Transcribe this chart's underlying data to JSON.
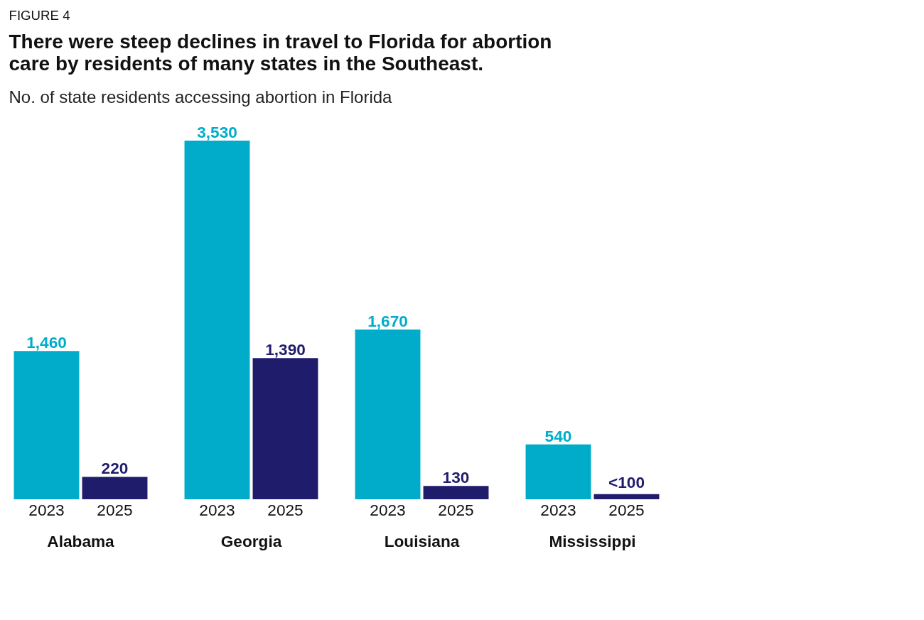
{
  "chart_data": {
    "type": "bar",
    "annotations": [
      "FIGURE 4"
    ],
    "title": "There were steep declines in travel to Florida for abortion care by residents of many states in the Southeast.",
    "subtitle": "No. of state residents accessing abortion in Florida",
    "categories": [
      "Alabama",
      "Georgia",
      "Louisiana",
      "Mississippi"
    ],
    "series": [
      {
        "name": "2023",
        "color": "#00acca",
        "values": [
          1460,
          3530,
          1670,
          540
        ],
        "value_labels": [
          "1,460",
          "3,530",
          "1,670",
          "540"
        ]
      },
      {
        "name": "2025",
        "color": "#1f1c6c",
        "values": [
          220,
          1390,
          130,
          50
        ],
        "value_labels": [
          "220",
          "1,390",
          "130",
          "<100"
        ]
      }
    ]
  }
}
